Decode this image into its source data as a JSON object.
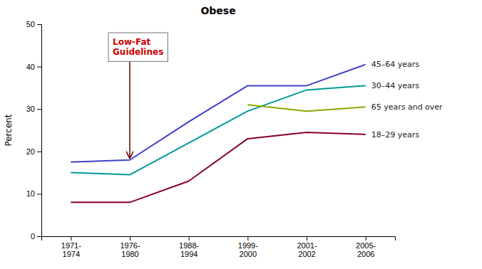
{
  "chart_data": {
    "type": "line",
    "title": "Obese",
    "y_label": "Percent",
    "categories": [
      "1971-\n1974",
      "1976-\n1980",
      "1988-\n1994",
      "1999-\n2000",
      "2001-\n2002",
      "2005-\n2006"
    ],
    "series": [
      {
        "name": "45–64 years",
        "color": "#4040cc",
        "values": [
          17.5,
          18.0,
          27.0,
          35.5,
          35.5,
          40.5
        ]
      },
      {
        "name": "30–44 years",
        "color": "#009999",
        "values": [
          15.0,
          14.5,
          22.0,
          29.5,
          34.5,
          35.5
        ]
      },
      {
        "name": "65 years and over",
        "color": "#88aa00",
        "values": [
          null,
          null,
          null,
          31.0,
          29.5,
          30.5
        ]
      },
      {
        "name": "18–29 years",
        "color": "#880033",
        "values": [
          8.0,
          8.0,
          13.0,
          23.0,
          24.5,
          24.0
        ]
      }
    ],
    "annotations": [
      {
        "text": "Low-Fat\nGuidelines",
        "color": "#cc0000",
        "x": "1976-\n1980",
        "y": 18.0
      }
    ],
    "ylim": [
      0,
      50
    ],
    "yticks": [
      0,
      10,
      20,
      30,
      40,
      50
    ],
    "grid": false
  }
}
